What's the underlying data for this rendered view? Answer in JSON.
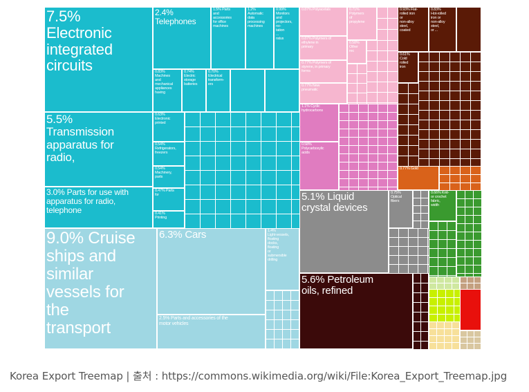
{
  "caption": "Korea Export Treemap | 출처 : https://commons.wikimedia.org/wiki/File:Korea_Export_Treemap.jpg",
  "colors": {
    "electronics": "#1bbccd",
    "transport": "#9fd7e3",
    "chemicals_light": "#f6b6cf",
    "chemicals_dark": "#e07cc0",
    "plastics_grey": "#8c8c8c",
    "minerals": "#3b0a0a",
    "metals": "#5a1a06",
    "gold": "#d9621a",
    "textiles": "#3a9a2f",
    "misc_yellow": "#c8f000",
    "misc_red": "#e8100c",
    "food": "#f7e09a"
  },
  "chart_data": {
    "type": "treemap",
    "title": "",
    "items": [
      {
        "label": "7.5% Electronic integrated circuits",
        "value": 7.5,
        "group": "electronics"
      },
      {
        "label": "5.5% Transmission apparatus for radio,",
        "value": 5.5,
        "group": "electronics"
      },
      {
        "label": "3.0% Parts for use with apparatus for radio, telephone",
        "value": 3.0,
        "group": "electronics"
      },
      {
        "label": "2.4% Telephones",
        "value": 2.4,
        "group": "electronics"
      },
      {
        "label": "1.5% Parts and accessories for office machines",
        "value": 1.5,
        "group": "electronics"
      },
      {
        "label": "1.2% Automatic data processing machines",
        "value": 1.2,
        "group": "electronics"
      },
      {
        "label": "0.99% Monitors and projectors, no- tation ... ratus",
        "value": 0.99,
        "group": "electronics"
      },
      {
        "label": "0.83% Machines and mechanical appliances having",
        "value": 0.83,
        "group": "electronics"
      },
      {
        "label": "0.74% Electric storage batteries",
        "value": 0.74,
        "group": "electronics"
      },
      {
        "label": "0.70% Electrical transformers",
        "value": 0.7,
        "group": "electronics"
      },
      {
        "label": "0.63% Electronic printed",
        "value": 0.63,
        "group": "electronics"
      },
      {
        "label": "0.54% Refrigerators, freezers",
        "value": 0.54,
        "group": "electronics"
      },
      {
        "label": "0.54% Machinery, parts",
        "value": 0.54,
        "group": "electronics"
      },
      {
        "label": "0.47% Parts for",
        "value": 0.47,
        "group": "electronics"
      },
      {
        "label": "0.41% Printing",
        "value": 0.41,
        "group": "electronics"
      },
      {
        "label": "9.0% Cruise ships and similar vessels for the transport",
        "value": 9.0,
        "group": "transport"
      },
      {
        "label": "6.3% Cars",
        "value": 6.3,
        "group": "transport"
      },
      {
        "label": "2.5% Parts and accessories of the motor vehicles",
        "value": 2.5,
        "group": "transport"
      },
      {
        "label": "1.4% Light-vessels, floating docks, floating or submersible drilling",
        "value": 1.4,
        "group": "transport"
      },
      {
        "label": "0.87% Polyacetals",
        "value": 0.87,
        "group": "chemicals"
      },
      {
        "label": "0.71% Polymers of propylene",
        "value": 0.71,
        "group": "chemicals"
      },
      {
        "label": "0.87% Polymers of ethylene in primary",
        "value": 0.87,
        "group": "chemicals"
      },
      {
        "label": "0.58% Other rec",
        "value": 0.58,
        "group": "chemicals"
      },
      {
        "label": "0.77% Polymers of styrene, in primary forms",
        "value": 0.77,
        "group": "chemicals"
      },
      {
        "label": "0.77% New pneumatic",
        "value": 0.77,
        "group": "chemicals"
      },
      {
        "label": "1.1% Cyclic hydrocarbons",
        "value": 1.1,
        "group": "chemicals"
      },
      {
        "label": "0.58% Polycarboxylic acids",
        "value": 0.58,
        "group": "chemicals"
      },
      {
        "label": "5.1% Liquid crystal devices",
        "value": 5.1,
        "group": "instruments"
      },
      {
        "label": "0.75% Optical fibers",
        "value": 0.75,
        "group": "instruments"
      },
      {
        "label": "5.6% Petroleum oils, refined",
        "value": 5.6,
        "group": "minerals"
      },
      {
        "label": "0.93% Flat-rolled iron or non-alloy steel, coated",
        "value": 0.93,
        "group": "metals"
      },
      {
        "label": "0.83% Hot-rolled iron or non-alloy steel",
        "value": 0.83,
        "group": "metals"
      },
      {
        "label": "0.61% Cold rolled iron",
        "value": 0.61,
        "group": "metals"
      },
      {
        "label": "0.77% Gold",
        "value": 0.77,
        "group": "metals"
      },
      {
        "label": "0.66% Knitted or crocheted fabric width",
        "value": 0.66,
        "group": "textiles"
      }
    ]
  },
  "labels": {
    "ic": "7.5%\nElectronic\nintegrated\ncircuits",
    "radio": "5.5%\nTransmission\napparatus for\nradio,",
    "radio_parts": "3.0% Parts for use with\napparatus for radio,\ntelephone",
    "telephones": "2.4%\nTelephones",
    "office_parts": "1.5% Parts\nand\naccessories\nfor office\nmachines",
    "adp": "1.2%\nAutomatic\ndata\nprocessing\nmachines",
    "monitors": "0.99%\nMonitors\nand\nprojectors,\nno-\ntation\n...\nratus",
    "machines_mech": "0.83%\nMachines\nand\nmechanical\nappliances\nhaving",
    "batteries": "0.74%\nElectric\nstorage\nbatteries",
    "transformers": "0.70%\nElectrical\ntransform-\ners",
    "printed": "0.63%\nElectronic\nprinted",
    "refrigerators": "0.54%\nRefrigerators,\nfreezers",
    "machinery_parts": "0.54%\nMachinery,\nparts",
    "parts_for": "0.47% Parts\nfor",
    "printing": "0.41%\nPrinting",
    "cruise": "9.0% Cruise\nships and\nsimilar\nvessels for\nthe\ntransport",
    "cars": "6.3% Cars",
    "vehicle_parts": "2.5% Parts and accessories of the\nmotor vehicles",
    "light_vessels": "1.4%\nLight-vessels,\nfloating\ndocks,\nfloating\nor\nsubmersible\ndrilling",
    "polyacetals": "0.87% Polyacetals",
    "propylene": "0.71%\nPolymers\nof\npropylene",
    "ethylene": "0.87% Polymers of\nethylene in\nprimary",
    "other_rec": "0.58%\nOther\nrec",
    "styrene": "0.77% Polymers of\nstyrene, in primary\nforms",
    "pneumatic": "0.77% New\npneumatic",
    "cyclic": "1.1% Cyclic\nhydrocarbons",
    "polycarboxylic": "0.58%\nPolycarboxylic\nacids",
    "lcd": "5.1% Liquid\ncrystal devices",
    "optical": "0.75%\nOptical\nfibers",
    "petroleum": "5.6% Petroleum\noils, refined",
    "flat_rolled": "0.93% Flat-\nrolled iron\nor\nnon-alloy\nsteel,\ncoated",
    "hot_rolled": "0.83%\nHot-rolled\niron or\nnon-alloy\nsteel,\nor ...",
    "cold_rolled": "0.61%\nCold\nrolled\niron",
    "gold": "0.77% Gold",
    "knitted": "0.66% Knit-\nor crochet\nfabric,\nwidth"
  }
}
